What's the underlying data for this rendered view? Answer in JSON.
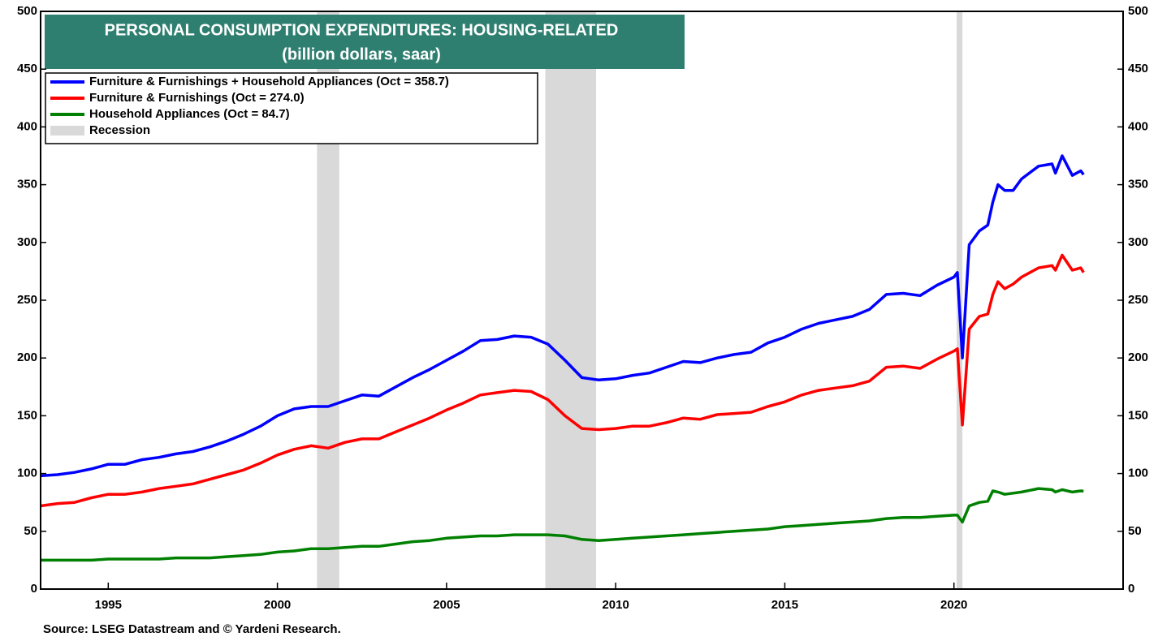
{
  "chart_data": {
    "type": "line",
    "title": "PERSONAL CONSUMPTION EXPENDITURES: HOUSING-RELATED",
    "subtitle": "(billion dollars, saar)",
    "source": "Source: LSEG Datastream and © Yardeni Research.",
    "recession_label": "Recession",
    "recessions": [
      [
        2001.17,
        2001.83
      ],
      [
        2007.92,
        2009.42
      ],
      [
        2020.08,
        2020.25
      ]
    ],
    "recession_color": "#d9d9d9",
    "xlim": [
      1993,
      2025
    ],
    "xticks": [
      1995,
      2000,
      2005,
      2010,
      2015,
      2020
    ],
    "ylim": [
      0,
      500
    ],
    "yticks": [
      0,
      50,
      100,
      150,
      200,
      250,
      300,
      350,
      400,
      450,
      500
    ],
    "y2lim": [
      0,
      500
    ],
    "y2ticks": [
      0,
      50,
      100,
      150,
      200,
      250,
      300,
      350,
      400,
      450,
      500
    ],
    "grid": false,
    "legend": "upper left",
    "x": [
      1993,
      1993.5,
      1994,
      1994.5,
      1995,
      1995.5,
      1996,
      1996.5,
      1997,
      1997.5,
      1998,
      1998.5,
      1999,
      1999.5,
      2000,
      2000.5,
      2001,
      2001.5,
      2002,
      2002.5,
      2003,
      2003.5,
      2004,
      2004.5,
      2005,
      2005.5,
      2006,
      2006.5,
      2007,
      2007.5,
      2008,
      2008.5,
      2009,
      2009.5,
      2010,
      2010.5,
      2011,
      2011.5,
      2012,
      2012.5,
      2013,
      2013.5,
      2014,
      2014.5,
      2015,
      2015.5,
      2016,
      2016.5,
      2017,
      2017.5,
      2018,
      2018.5,
      2019,
      2019.5,
      2020,
      2020.1,
      2020.25,
      2020.45,
      2020.75,
      2021,
      2021.15,
      2021.3,
      2021.5,
      2021.75,
      2022,
      2022.5,
      2022.9,
      2023.0,
      2023.2,
      2023.5,
      2023.75,
      2023.83
    ],
    "series": [
      {
        "name": "Furniture & Furnishings + Household Appliances  (Oct = 358.7)",
        "color": "#0000ff",
        "values": [
          98,
          99,
          101,
          104,
          108,
          108,
          112,
          114,
          117,
          119,
          123,
          128,
          134,
          141,
          150,
          156,
          158,
          158,
          163,
          168,
          167,
          175,
          183,
          190,
          198,
          206,
          215,
          216,
          219,
          218,
          212,
          198,
          183,
          181,
          182,
          185,
          187,
          192,
          197,
          196,
          200,
          203,
          205,
          213,
          218,
          225,
          230,
          233,
          236,
          242,
          255,
          256,
          254,
          263,
          270,
          274,
          200,
          298,
          310,
          315,
          335,
          350,
          345,
          345,
          355,
          366,
          368,
          360,
          375,
          358,
          362,
          358.7
        ]
      },
      {
        "name": "Furniture & Furnishings (Oct = 274.0)",
        "color": "#ff0000",
        "values": [
          72,
          74,
          75,
          79,
          82,
          82,
          84,
          87,
          89,
          91,
          95,
          99,
          103,
          109,
          116,
          121,
          124,
          122,
          127,
          130,
          130,
          136,
          142,
          148,
          155,
          161,
          168,
          170,
          172,
          171,
          164,
          150,
          139,
          138,
          139,
          141,
          141,
          144,
          148,
          147,
          151,
          152,
          153,
          158,
          162,
          168,
          172,
          174,
          176,
          180,
          192,
          193,
          191,
          199,
          206,
          208,
          142,
          225,
          236,
          238,
          255,
          266,
          260,
          264,
          270,
          278,
          280,
          276,
          289,
          276,
          278,
          274.0
        ]
      },
      {
        "name": "Household Appliances (Oct = 84.7)",
        "color": "#008000",
        "values": [
          25,
          25,
          25,
          25,
          26,
          26,
          26,
          26,
          27,
          27,
          27,
          28,
          29,
          30,
          32,
          33,
          35,
          35,
          36,
          37,
          37,
          39,
          41,
          42,
          44,
          45,
          46,
          46,
          47,
          47,
          47,
          46,
          43,
          42,
          43,
          44,
          45,
          46,
          47,
          48,
          49,
          50,
          51,
          52,
          54,
          55,
          56,
          57,
          58,
          59,
          61,
          62,
          62,
          63,
          64,
          64,
          58,
          72,
          75,
          76,
          85,
          84,
          82,
          83,
          84,
          87,
          86,
          84,
          86,
          84,
          85,
          84.7
        ]
      }
    ]
  }
}
